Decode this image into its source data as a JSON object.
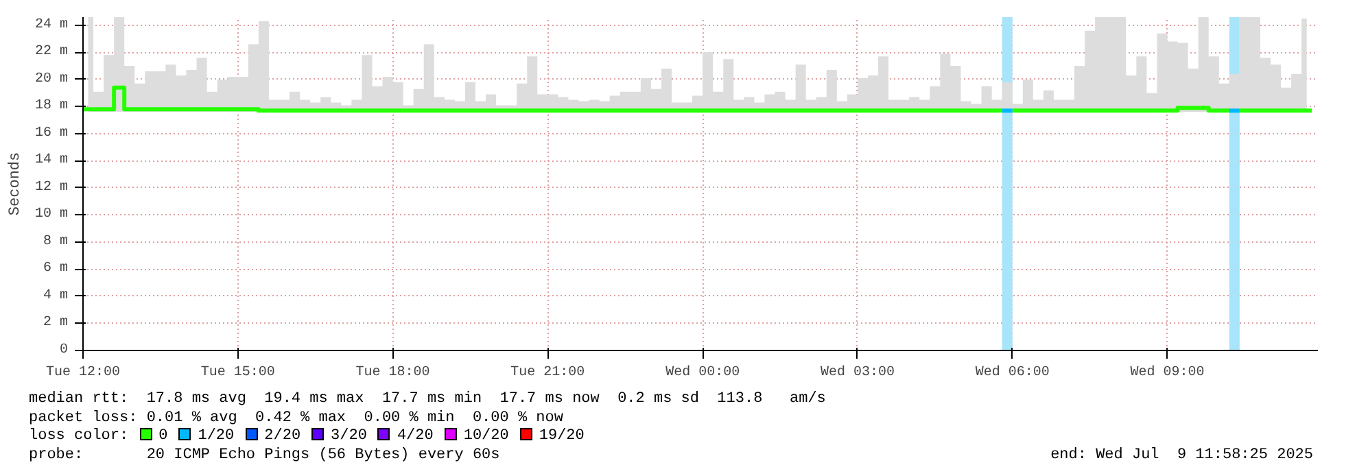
{
  "chart_data": {
    "type": "step",
    "ylabel": "Seconds",
    "x": [
      "2025-07-08T12:06",
      "2025-07-08T12:18",
      "2025-07-08T12:30",
      "2025-07-08T12:42",
      "2025-07-08T12:54",
      "2025-07-08T13:06",
      "2025-07-08T13:18",
      "2025-07-08T13:30",
      "2025-07-08T13:42",
      "2025-07-08T13:54",
      "2025-07-08T14:06",
      "2025-07-08T14:18",
      "2025-07-08T14:30",
      "2025-07-08T14:42",
      "2025-07-08T14:54",
      "2025-07-08T15:06",
      "2025-07-08T15:18",
      "2025-07-08T15:30",
      "2025-07-08T15:42",
      "2025-07-08T15:54",
      "2025-07-08T16:06",
      "2025-07-08T16:18",
      "2025-07-08T16:30",
      "2025-07-08T16:42",
      "2025-07-08T16:54",
      "2025-07-08T17:06",
      "2025-07-08T17:18",
      "2025-07-08T17:30",
      "2025-07-08T17:42",
      "2025-07-08T17:54",
      "2025-07-08T18:06",
      "2025-07-08T18:18",
      "2025-07-08T18:30",
      "2025-07-08T18:42",
      "2025-07-08T18:54",
      "2025-07-08T19:06",
      "2025-07-08T19:18",
      "2025-07-08T19:30",
      "2025-07-08T19:42",
      "2025-07-08T19:54",
      "2025-07-08T20:06",
      "2025-07-08T20:18",
      "2025-07-08T20:30",
      "2025-07-08T20:42",
      "2025-07-08T20:54",
      "2025-07-08T21:06",
      "2025-07-08T21:18",
      "2025-07-08T21:30",
      "2025-07-08T21:42",
      "2025-07-08T21:54",
      "2025-07-08T22:06",
      "2025-07-08T22:18",
      "2025-07-08T22:30",
      "2025-07-08T22:42",
      "2025-07-08T22:54",
      "2025-07-08T23:06",
      "2025-07-08T23:18",
      "2025-07-08T23:30",
      "2025-07-08T23:42",
      "2025-07-08T23:54",
      "2025-07-09T00:06",
      "2025-07-09T00:18",
      "2025-07-09T00:30",
      "2025-07-09T00:42",
      "2025-07-09T00:54",
      "2025-07-09T01:06",
      "2025-07-09T01:18",
      "2025-07-09T01:30",
      "2025-07-09T01:42",
      "2025-07-09T01:54",
      "2025-07-09T02:06",
      "2025-07-09T02:18",
      "2025-07-09T02:30",
      "2025-07-09T02:42",
      "2025-07-09T02:54",
      "2025-07-09T03:06",
      "2025-07-09T03:18",
      "2025-07-09T03:30",
      "2025-07-09T03:42",
      "2025-07-09T03:54",
      "2025-07-09T04:06",
      "2025-07-09T04:18",
      "2025-07-09T04:30",
      "2025-07-09T04:42",
      "2025-07-09T04:54",
      "2025-07-09T05:06",
      "2025-07-09T05:18",
      "2025-07-09T05:30",
      "2025-07-09T05:42",
      "2025-07-09T05:54",
      "2025-07-09T06:06",
      "2025-07-09T06:18",
      "2025-07-09T06:30",
      "2025-07-09T06:42",
      "2025-07-09T06:54",
      "2025-07-09T07:06",
      "2025-07-09T07:18",
      "2025-07-09T07:30",
      "2025-07-09T07:42",
      "2025-07-09T07:54",
      "2025-07-09T08:06",
      "2025-07-09T08:18",
      "2025-07-09T08:30",
      "2025-07-09T08:42",
      "2025-07-09T08:54",
      "2025-07-09T09:06",
      "2025-07-09T09:18",
      "2025-07-09T09:30",
      "2025-07-09T09:42",
      "2025-07-09T09:54",
      "2025-07-09T10:06",
      "2025-07-09T10:18",
      "2025-07-09T10:30",
      "2025-07-09T10:42",
      "2025-07-09T10:54",
      "2025-07-09T11:06",
      "2025-07-09T11:18",
      "2025-07-09T11:30",
      "2025-07-09T11:42"
    ],
    "series": [
      {
        "name": "0",
        "color": "#26ff00",
        "values": [
          17.8,
          17.8,
          17.8,
          19.4,
          17.8,
          17.8,
          17.8,
          17.8,
          17.8,
          17.8,
          17.8,
          17.8,
          17.8,
          17.8,
          17.8,
          17.8,
          17.8,
          17.7,
          17.7,
          17.7,
          17.7,
          17.7,
          17.7,
          17.7,
          17.7,
          17.7,
          17.7,
          17.7,
          17.7,
          17.7,
          17.7,
          17.7,
          17.7,
          17.7,
          17.7,
          17.7,
          17.7,
          17.7,
          17.7,
          17.7,
          17.7,
          17.7,
          17.7,
          17.7,
          17.7,
          17.7,
          17.7,
          17.7,
          17.7,
          17.7,
          17.7,
          17.7,
          17.7,
          17.7,
          17.7,
          17.7,
          17.7,
          17.7,
          17.7,
          17.7,
          17.7,
          17.7,
          17.7,
          17.7,
          17.7,
          17.7,
          17.7,
          17.7,
          17.7,
          17.7,
          17.7,
          17.7,
          17.7,
          17.7,
          17.7,
          17.7,
          17.7,
          17.7,
          17.7,
          17.7,
          17.7,
          17.7,
          17.7,
          17.7,
          17.7,
          17.7,
          17.7,
          17.7,
          17.7,
          null,
          17.7,
          17.7,
          17.7,
          17.7,
          17.7,
          17.7,
          17.7,
          17.7,
          17.7,
          17.7,
          17.7,
          17.7,
          17.7,
          17.7,
          17.7,
          17.7,
          17.9,
          17.9,
          17.9,
          17.7,
          17.7,
          null,
          17.7,
          17.7,
          17.7,
          17.7,
          17.7,
          17.7,
          17.7
        ],
        "lower": [
          17.6,
          17.6,
          17.6,
          17.6,
          17.6,
          17.6,
          17.6,
          17.6,
          17.6,
          17.6,
          17.6,
          17.6,
          17.6,
          17.6,
          17.6,
          17.6,
          17.6,
          17.6,
          17.6,
          17.6,
          17.6,
          17.6,
          17.6,
          17.6,
          17.6,
          17.6,
          17.6,
          17.6,
          17.6,
          17.6,
          17.6,
          17.6,
          17.6,
          17.6,
          17.6,
          17.6,
          17.6,
          17.6,
          17.6,
          17.6,
          17.6,
          17.6,
          17.6,
          17.6,
          17.6,
          17.6,
          17.6,
          17.6,
          17.6,
          17.6,
          17.6,
          17.6,
          17.6,
          17.6,
          17.6,
          17.6,
          17.6,
          17.6,
          17.6,
          17.6,
          17.6,
          17.6,
          17.6,
          17.6,
          17.6,
          17.6,
          17.6,
          17.6,
          17.6,
          17.6,
          17.6,
          17.6,
          17.6,
          17.6,
          17.6,
          17.6,
          17.6,
          17.6,
          17.6,
          17.6,
          17.6,
          17.6,
          17.6,
          17.6,
          17.6,
          17.6,
          17.6,
          17.6,
          17.6,
          17.6,
          17.6,
          17.6,
          17.6,
          17.6,
          17.6,
          17.6,
          17.6,
          17.6,
          17.6,
          17.6,
          17.6,
          17.6,
          17.6,
          17.6,
          17.6,
          17.6,
          17.6,
          17.6,
          17.6,
          17.6,
          17.6,
          17.6,
          17.6,
          17.6,
          17.6,
          17.6,
          17.6,
          17.6,
          17.6
        ],
        "upper": [
          24.6,
          19.1,
          21.8,
          24.6,
          21.0,
          19.7,
          20.6,
          20.6,
          21.1,
          20.3,
          20.7,
          21.6,
          19.1,
          20.0,
          20.2,
          20.2,
          22.6,
          24.3,
          18.5,
          18.5,
          19.1,
          18.5,
          18.3,
          18.7,
          18.3,
          18.1,
          18.5,
          21.8,
          19.5,
          20.2,
          19.8,
          18.1,
          19.3,
          22.6,
          18.7,
          18.5,
          18.4,
          19.8,
          18.4,
          18.9,
          18.1,
          18.1,
          19.7,
          21.7,
          18.9,
          18.9,
          18.7,
          18.5,
          18.4,
          18.5,
          18.4,
          18.8,
          19.1,
          19.1,
          20.1,
          19.3,
          20.8,
          18.3,
          18.3,
          18.8,
          22.0,
          19.1,
          21.5,
          18.5,
          18.7,
          18.3,
          18.9,
          19.1,
          18.5,
          21.1,
          18.5,
          18.7,
          20.7,
          18.4,
          18.9,
          20.1,
          20.3,
          21.7,
          18.5,
          18.5,
          18.7,
          18.5,
          19.5,
          21.9,
          21.0,
          18.4,
          18.2,
          19.5,
          18.5,
          19.8,
          18.2,
          20.0,
          18.5,
          19.2,
          18.5,
          18.5,
          21.0,
          23.6,
          24.6,
          24.6,
          24.6,
          20.3,
          21.7,
          19.0,
          23.4,
          22.8,
          22.7,
          20.8,
          24.6,
          21.7,
          19.7,
          20.4,
          24.6,
          24.6,
          21.6,
          21.1,
          19.4,
          20.4,
          24.5
        ]
      },
      {
        "name": "1/20",
        "color": "#00b8ff",
        "values": [
          null,
          null,
          null,
          null,
          null,
          null,
          null,
          null,
          null,
          null,
          null,
          null,
          null,
          null,
          null,
          null,
          null,
          null,
          null,
          null,
          null,
          null,
          null,
          null,
          null,
          null,
          null,
          null,
          null,
          null,
          null,
          null,
          null,
          null,
          null,
          null,
          null,
          null,
          null,
          null,
          null,
          null,
          null,
          null,
          null,
          null,
          null,
          null,
          null,
          null,
          null,
          null,
          null,
          null,
          null,
          null,
          null,
          null,
          null,
          null,
          null,
          null,
          null,
          null,
          null,
          null,
          null,
          null,
          null,
          null,
          null,
          null,
          null,
          null,
          null,
          null,
          null,
          null,
          null,
          null,
          null,
          null,
          null,
          null,
          null,
          null,
          null,
          null,
          null,
          17.7,
          null,
          null,
          null,
          null,
          null,
          null,
          null,
          null,
          null,
          null,
          null,
          null,
          null,
          null,
          null,
          null,
          null,
          null,
          null,
          null,
          null,
          17.7,
          null,
          null,
          null,
          null,
          null,
          null,
          null
        ]
      },
      {
        "name": "2/20",
        "color": "#0059ff",
        "values": [
          null,
          null,
          null,
          null,
          null,
          null,
          null,
          null,
          null,
          null,
          null,
          null,
          null,
          null,
          null,
          null,
          null,
          null,
          null,
          null,
          null,
          null,
          null,
          null,
          null,
          null,
          null,
          null,
          null,
          null,
          null,
          null,
          null,
          null,
          null,
          null,
          null,
          null,
          null,
          null,
          null,
          null,
          null,
          null,
          null,
          null,
          null,
          null,
          null,
          null,
          null,
          null,
          null,
          null,
          null,
          null,
          null,
          null,
          null,
          null,
          null,
          null,
          null,
          null,
          null,
          null,
          null,
          null,
          null,
          null,
          null,
          null,
          null,
          null,
          null,
          null,
          null,
          null,
          null,
          null,
          null,
          null,
          null,
          null,
          null,
          null,
          null,
          null,
          null,
          null,
          null,
          null,
          null,
          null,
          null,
          null,
          null,
          null,
          null,
          null,
          null,
          null,
          null,
          null,
          null,
          null,
          null,
          null,
          null,
          null,
          null,
          null,
          null,
          null,
          null,
          null,
          null,
          null,
          null
        ]
      },
      {
        "name": "3/20",
        "color": "#5e00ff",
        "values": [
          null,
          null,
          null,
          null,
          null,
          null,
          null,
          null,
          null,
          null,
          null,
          null,
          null,
          null,
          null,
          null,
          null,
          null,
          null,
          null,
          null,
          null,
          null,
          null,
          null,
          null,
          null,
          null,
          null,
          null,
          null,
          null,
          null,
          null,
          null,
          null,
          null,
          null,
          null,
          null,
          null,
          null,
          null,
          null,
          null,
          null,
          null,
          null,
          null,
          null,
          null,
          null,
          null,
          null,
          null,
          null,
          null,
          null,
          null,
          null,
          null,
          null,
          null,
          null,
          null,
          null,
          null,
          null,
          null,
          null,
          null,
          null,
          null,
          null,
          null,
          null,
          null,
          null,
          null,
          null,
          null,
          null,
          null,
          null,
          null,
          null,
          null,
          null,
          null,
          null,
          null,
          null,
          null,
          null,
          null,
          null,
          null,
          null,
          null,
          null,
          null,
          null,
          null,
          null,
          null,
          null,
          null,
          null,
          null,
          null,
          null,
          null,
          null,
          null,
          null,
          null,
          null,
          null,
          null
        ]
      },
      {
        "name": "4/20",
        "color": "#7e00ff",
        "values": [
          null,
          null,
          null,
          null,
          null,
          null,
          null,
          null,
          null,
          null,
          null,
          null,
          null,
          null,
          null,
          null,
          null,
          null,
          null,
          null,
          null,
          null,
          null,
          null,
          null,
          null,
          null,
          null,
          null,
          null,
          null,
          null,
          null,
          null,
          null,
          null,
          null,
          null,
          null,
          null,
          null,
          null,
          null,
          null,
          null,
          null,
          null,
          null,
          null,
          null,
          null,
          null,
          null,
          null,
          null,
          null,
          null,
          null,
          null,
          null,
          null,
          null,
          null,
          null,
          null,
          null,
          null,
          null,
          null,
          null,
          null,
          null,
          null,
          null,
          null,
          null,
          null,
          null,
          null,
          null,
          null,
          null,
          null,
          null,
          null,
          null,
          null,
          null,
          null,
          null,
          null,
          null,
          null,
          null,
          null,
          null,
          null,
          null,
          null,
          null,
          null,
          null,
          null,
          null,
          null,
          null,
          null,
          null,
          null,
          null,
          null,
          null,
          null,
          null,
          null,
          null,
          null,
          null,
          null
        ]
      },
      {
        "name": "10/20",
        "color": "#dd00ff",
        "values": [
          null,
          null,
          null,
          null,
          null,
          null,
          null,
          null,
          null,
          null,
          null,
          null,
          null,
          null,
          null,
          null,
          null,
          null,
          null,
          null,
          null,
          null,
          null,
          null,
          null,
          null,
          null,
          null,
          null,
          null,
          null,
          null,
          null,
          null,
          null,
          null,
          null,
          null,
          null,
          null,
          null,
          null,
          null,
          null,
          null,
          null,
          null,
          null,
          null,
          null,
          null,
          null,
          null,
          null,
          null,
          null,
          null,
          null,
          null,
          null,
          null,
          null,
          null,
          null,
          null,
          null,
          null,
          null,
          null,
          null,
          null,
          null,
          null,
          null,
          null,
          null,
          null,
          null,
          null,
          null,
          null,
          null,
          null,
          null,
          null,
          null,
          null,
          null,
          null,
          null,
          null,
          null,
          null,
          null,
          null,
          null,
          null,
          null,
          null,
          null,
          null,
          null,
          null,
          null,
          null,
          null,
          null,
          null,
          null,
          null,
          null,
          null,
          null,
          null,
          null,
          null,
          null,
          null,
          null
        ]
      },
      {
        "name": "19/20",
        "color": "#ff0000",
        "values": [
          null,
          null,
          null,
          null,
          null,
          null,
          null,
          null,
          null,
          null,
          null,
          null,
          null,
          null,
          null,
          null,
          null,
          null,
          null,
          null,
          null,
          null,
          null,
          null,
          null,
          null,
          null,
          null,
          null,
          null,
          null,
          null,
          null,
          null,
          null,
          null,
          null,
          null,
          null,
          null,
          null,
          null,
          null,
          null,
          null,
          null,
          null,
          null,
          null,
          null,
          null,
          null,
          null,
          null,
          null,
          null,
          null,
          null,
          null,
          null,
          null,
          null,
          null,
          null,
          null,
          null,
          null,
          null,
          null,
          null,
          null,
          null,
          null,
          null,
          null,
          null,
          null,
          null,
          null,
          null,
          null,
          null,
          null,
          null,
          null,
          null,
          null,
          null,
          null,
          null,
          null,
          null,
          null,
          null,
          null,
          null,
          null,
          null,
          null,
          null,
          null,
          null,
          null,
          null,
          null,
          null,
          null,
          null,
          null,
          null,
          null,
          null,
          null,
          null,
          null,
          null,
          null,
          null,
          null
        ]
      }
    ],
    "bands": [
      {
        "axis": "x",
        "from": "2025-07-09T05:48",
        "to": "2025-07-09T06:00",
        "color": "#a8e4fa"
      },
      {
        "axis": "x",
        "from": "2025-07-09T10:12",
        "to": "2025-07-09T10:24",
        "color": "#a8e4fa"
      }
    ],
    "xlim": [
      "2025-07-08T12:00",
      "2025-07-09T11:55"
    ],
    "xticks": [
      {
        "value": "2025-07-08T12:00",
        "label": "Tue 12:00"
      },
      {
        "value": "2025-07-08T15:00",
        "label": "Tue 15:00"
      },
      {
        "value": "2025-07-08T18:00",
        "label": "Tue 18:00"
      },
      {
        "value": "2025-07-08T21:00",
        "label": "Tue 21:00"
      },
      {
        "value": "2025-07-09T00:00",
        "label": "Wed 00:00"
      },
      {
        "value": "2025-07-09T03:00",
        "label": "Wed 03:00"
      },
      {
        "value": "2025-07-09T06:00",
        "label": "Wed 06:00"
      },
      {
        "value": "2025-07-09T09:00",
        "label": "Wed 09:00"
      }
    ],
    "ylim": [
      0,
      24.6
    ],
    "yticks": [
      0,
      {
        "value": 2,
        "label": "2 m"
      },
      {
        "value": 4,
        "label": "4 m"
      },
      {
        "value": 6,
        "label": "6 m"
      },
      {
        "value": 8,
        "label": "8 m"
      },
      {
        "value": 10,
        "label": "10 m"
      },
      {
        "value": 12,
        "label": "12 m"
      },
      {
        "value": 14,
        "label": "14 m"
      },
      {
        "value": 16,
        "label": "16 m"
      },
      {
        "value": 18,
        "label": "18 m"
      },
      {
        "value": 20,
        "label": "20 m"
      },
      {
        "value": 22,
        "label": "22 m"
      },
      {
        "value": 24,
        "label": "24 m"
      }
    ],
    "grid": true,
    "legend": "bottom",
    "legend_title": "loss color:",
    "annotations": [
      "median rtt:  17.8 ms avg  19.4 ms max  17.7 ms min  17.7 ms now  0.2 ms sd  113.8   am/s",
      "packet loss: 0.01 % avg  0.42 % max  0.00 % min  0.00 % now",
      "probe:       20 ICMP Echo Pings (56 Bytes) every 60s",
      "end: Wed Jul  9 11:58:25 2025"
    ]
  }
}
